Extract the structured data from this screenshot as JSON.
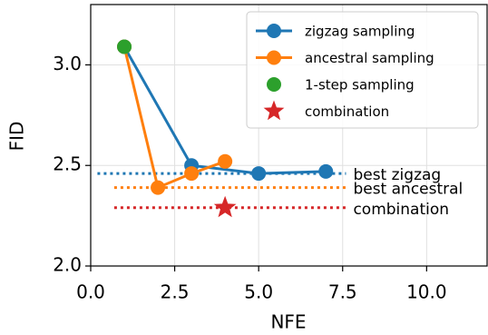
{
  "chart_data": {
    "type": "line",
    "xlabel": "NFE",
    "ylabel": "FID",
    "xlim": [
      0,
      11.8
    ],
    "xticks": [
      {
        "value": 0,
        "label": "0.0"
      },
      {
        "value": 2.5,
        "label": "2.5"
      },
      {
        "value": 5,
        "label": "5.0"
      },
      {
        "value": 7.5,
        "label": "7.5"
      },
      {
        "value": 10,
        "label": "10.0"
      }
    ],
    "ylim": [
      2.0,
      3.3
    ],
    "yticks": [
      {
        "value": 2,
        "label": "2.0"
      },
      2.5,
      {
        "value": 3,
        "label": "3.0"
      }
    ],
    "grid": true,
    "legend": "upper right",
    "series": [
      {
        "name": "zigzag sampling",
        "color": "#1f77b4",
        "marker": "circle",
        "x": [
          1,
          3,
          5,
          7
        ],
        "values": [
          3.09,
          2.5,
          2.46,
          2.47
        ]
      },
      {
        "name": "ancestral sampling",
        "color": "#ff7f0e",
        "marker": "circle",
        "x": [
          1,
          2,
          3,
          4
        ],
        "values": [
          3.09,
          2.39,
          2.46,
          2.52
        ]
      },
      {
        "name": "1-step sampling",
        "color": "#2ca02c",
        "marker": "circle",
        "x": [
          1
        ],
        "values": [
          3.09
        ]
      },
      {
        "name": "combination",
        "color": "#d62728",
        "marker": "star",
        "x": [
          4
        ],
        "values": [
          2.29
        ]
      }
    ],
    "hlines": [
      {
        "label": "best zigzag",
        "color": "#1f77b4",
        "y": 2.46,
        "xmin": 0.2,
        "xmax": 7.6
      },
      {
        "label": "best ancestral",
        "color": "#ff7f0e",
        "y": 2.39,
        "xmin": 0.7,
        "xmax": 7.6
      },
      {
        "label": "combination",
        "color": "#d62728",
        "y": 2.29,
        "xmin": 0.7,
        "xmax": 7.6
      }
    ]
  }
}
